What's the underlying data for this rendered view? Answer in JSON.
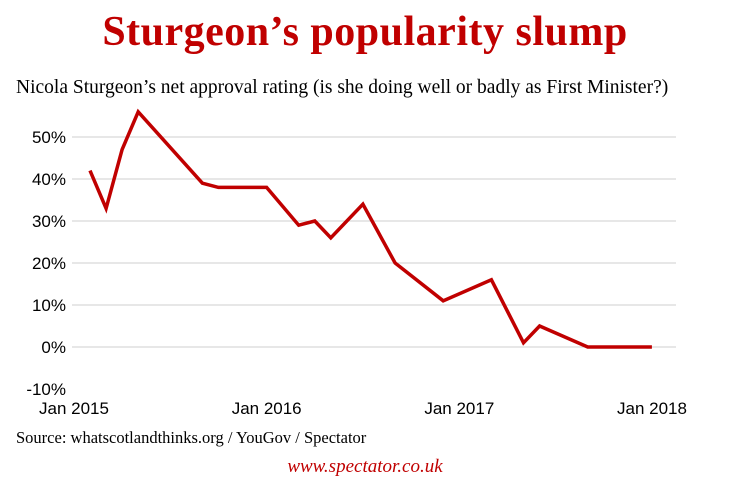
{
  "chart_data": {
    "type": "line",
    "title": "Sturgeon’s popularity slump",
    "subtitle": "Nicola Sturgeon’s net approval rating (is she doing well or badly as First Minister?)",
    "xlabel": "",
    "ylabel": "",
    "x_tick_labels": [
      "Jan 2015",
      "Jan 2016",
      "Jan 2017",
      "Jan 2018"
    ],
    "y_tick_labels": [
      "-10%",
      "0%",
      "10%",
      "20%",
      "30%",
      "40%",
      "50%"
    ],
    "ylim": [
      -10,
      50
    ],
    "xlim": [
      "2015-01",
      "2018-01"
    ],
    "grid": "horizontal",
    "legend": "none",
    "line_color": "#c00000",
    "series": [
      {
        "x": [
          "2015-01",
          "2015-02",
          "2015-03",
          "2015-04",
          "2015-08",
          "2015-09",
          "2015-12",
          "2016-02",
          "2016-03",
          "2016-04",
          "2016-06",
          "2016-08",
          "2016-11",
          "2017-02",
          "2017-04",
          "2017-05",
          "2017-08",
          "2017-12"
        ],
        "values": [
          42,
          33,
          47,
          56,
          39,
          38,
          38,
          29,
          30,
          26,
          34,
          20,
          11,
          16,
          1,
          5,
          0,
          0
        ]
      }
    ]
  },
  "source": "Source: whatscotlandthinks.org / YouGov / Spectator",
  "footer": "www.spectator.co.uk"
}
